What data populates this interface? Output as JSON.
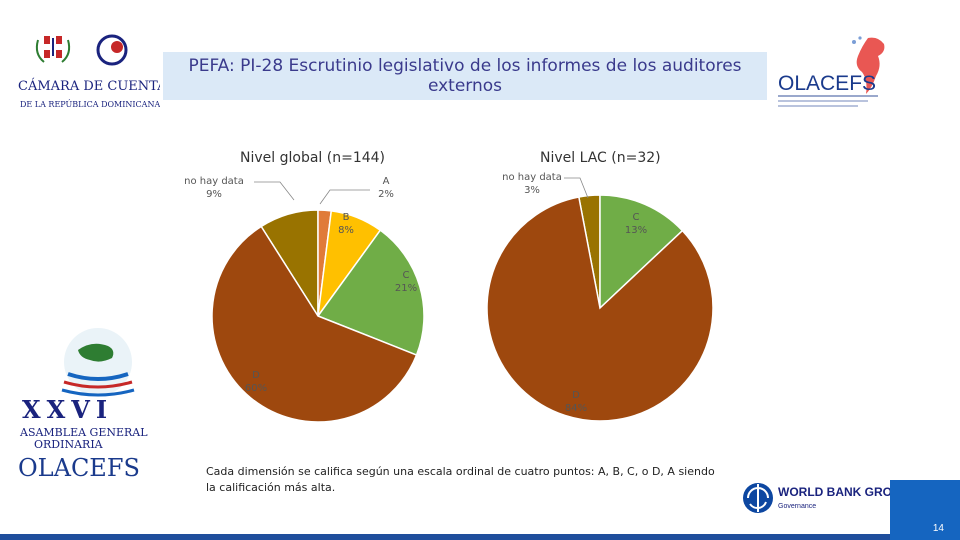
{
  "header": {
    "title": "PEFA: PI-28 Escrutinio legislativo de los informes de los auditores externos",
    "left_logo_line1": "CÁMARA DE CUENTAS",
    "left_logo_line2": "DE LA REPÚBLICA DOMINICANA",
    "right_logo": "OLACEFS"
  },
  "left_emblem": {
    "numeral": "XXVI",
    "line1": "ASAMBLEA GENERAL",
    "line2": "ORDINARIA",
    "line3": "OLACEFS"
  },
  "footer": {
    "note": "Cada dimensión se califica según una escala ordinal de cuatro puntos: A, B, C, o D, A siendo la calificación más alta.",
    "brand_main": "WORLD BANK GROUP",
    "brand_sub": "Governance",
    "page_number": "14"
  },
  "colors": {
    "A": "#e07b39",
    "B": "#ffc000",
    "C": "#70ad47",
    "D": "#9e480e",
    "no_hay_data": "#997300"
  },
  "chart_data": [
    {
      "type": "pie",
      "title": "Nivel global (n=144)",
      "slices": [
        {
          "label": "no hay data",
          "value": 9,
          "display": "9%",
          "color": "#997300"
        },
        {
          "label": "A",
          "value": 2,
          "display": "2%",
          "color": "#e07b39"
        },
        {
          "label": "B",
          "value": 8,
          "display": "8%",
          "color": "#ffc000"
        },
        {
          "label": "C",
          "value": 21,
          "display": "21%",
          "color": "#70ad47"
        },
        {
          "label": "D",
          "value": 60,
          "display": "60%",
          "color": "#9e480e"
        }
      ]
    },
    {
      "type": "pie",
      "title": "Nivel LAC (n=32)",
      "slices": [
        {
          "label": "no hay data",
          "value": 3,
          "display": "3%",
          "color": "#997300"
        },
        {
          "label": "C",
          "value": 13,
          "display": "13%",
          "color": "#70ad47"
        },
        {
          "label": "D",
          "value": 84,
          "display": "84%",
          "color": "#9e480e"
        }
      ]
    }
  ]
}
